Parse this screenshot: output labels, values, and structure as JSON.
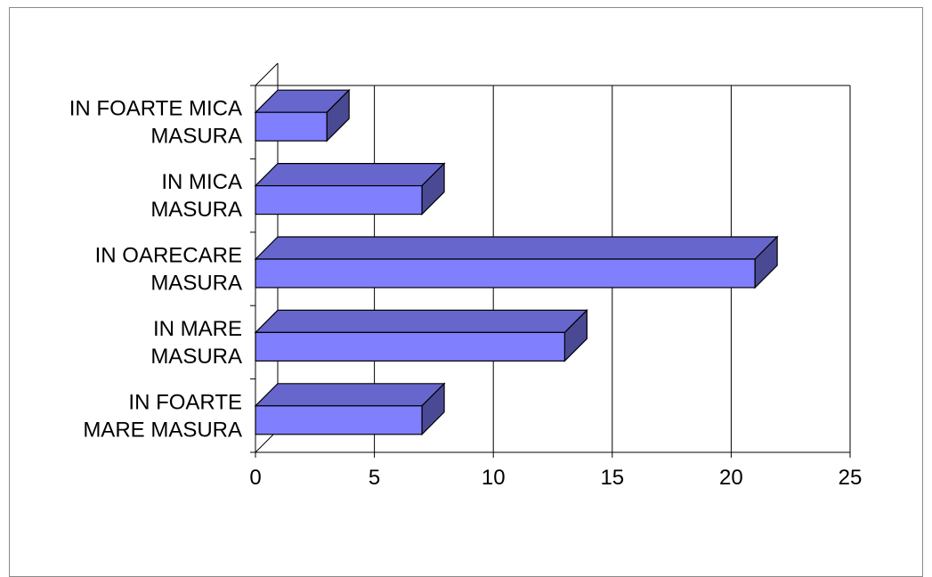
{
  "chart_data": {
    "type": "bar",
    "orientation": "horizontal",
    "style": "3d",
    "categories": [
      "IN FOARTE MICA MASURA",
      "IN MICA MASURA",
      "IN OARECARE MASURA",
      "IN MARE MASURA",
      "IN FOARTE MARE MASURA"
    ],
    "category_label_lines": [
      [
        "IN FOARTE MICA",
        "MASURA"
      ],
      [
        "IN MICA",
        "MASURA"
      ],
      [
        "IN OARECARE",
        "MASURA"
      ],
      [
        "IN MARE",
        "MASURA"
      ],
      [
        "IN FOARTE",
        "MARE MASURA"
      ]
    ],
    "values": [
      3,
      7,
      21,
      13,
      7
    ],
    "xlim": [
      0,
      25
    ],
    "x_ticks": [
      0,
      5,
      10,
      15,
      20,
      25
    ],
    "x_tick_labels": [
      "0",
      "5",
      "10",
      "15",
      "20",
      "25"
    ],
    "title": "",
    "xlabel": "",
    "ylabel": "",
    "grid": "vertical",
    "legend": "none",
    "colors": {
      "bar_front": "#8080ff",
      "bar_top": "#6666cc",
      "bar_side": "#4a4a94",
      "bar_outline": "#000000",
      "grid": "#000000",
      "frame": "#8a8a8a"
    }
  }
}
